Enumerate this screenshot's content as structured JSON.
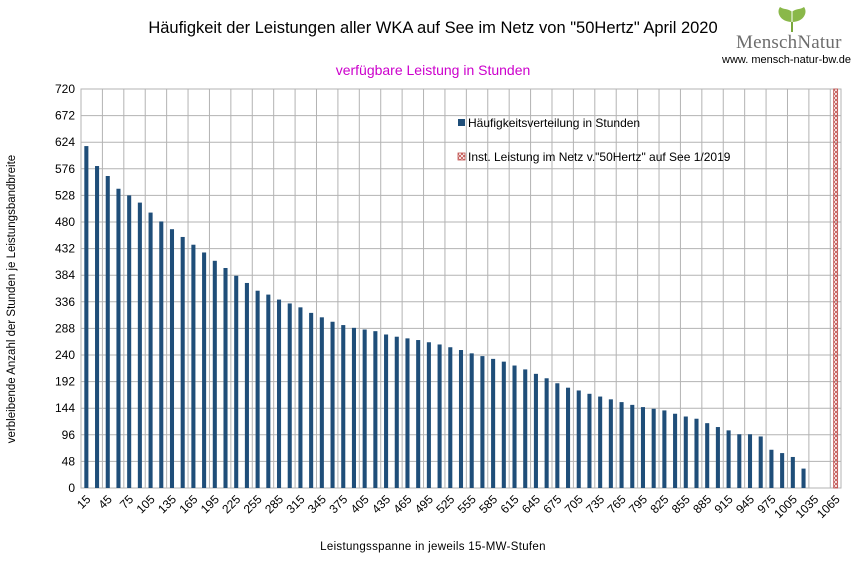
{
  "header": {
    "title": "Häufigkeit der Leistungen aller WKA auf See im Netz von \"50Hertz\" April 2020",
    "subtitle": "verfügbare Leistung in Stunden"
  },
  "logo": {
    "text": "MenschNatur",
    "url": "www. mensch-natur-bw.de",
    "icon": "ginkgo-leaf-icon"
  },
  "colors": {
    "bars": "#1f4e79",
    "subtitle": "#cc00cc",
    "inst_line": "#c0504d",
    "grid": "#b3b3b3"
  },
  "chart_data": {
    "type": "bar",
    "title": "Häufigkeit der Leistungen aller WKA auf See im Netz von \"50Hertz\" April 2020",
    "subtitle": "verfügbare Leistung in Stunden",
    "xlabel": "Leistungsspanne in jeweils 15-MW-Stufen",
    "ylabel": "verbleibende Anzahl der Stunden je Leistungsbandbreite",
    "ylim": [
      0,
      720
    ],
    "yticks": [
      0,
      48,
      96,
      144,
      192,
      240,
      288,
      336,
      384,
      432,
      480,
      528,
      576,
      624,
      672,
      720
    ],
    "x": [
      15,
      30,
      45,
      60,
      75,
      90,
      105,
      120,
      135,
      150,
      165,
      180,
      195,
      210,
      225,
      240,
      255,
      270,
      285,
      300,
      315,
      330,
      345,
      360,
      375,
      390,
      405,
      420,
      435,
      450,
      465,
      480,
      495,
      510,
      525,
      540,
      555,
      570,
      585,
      600,
      615,
      630,
      645,
      660,
      675,
      690,
      705,
      720,
      735,
      750,
      765,
      780,
      795,
      810,
      825,
      840,
      855,
      870,
      885,
      900,
      915,
      930,
      945,
      960,
      975,
      990,
      1005,
      1020,
      1035,
      1050,
      1065
    ],
    "xtick_labels": [
      "15",
      "45",
      "75",
      "105",
      "135",
      "165",
      "195",
      "225",
      "255",
      "285",
      "315",
      "345",
      "375",
      "405",
      "435",
      "465",
      "495",
      "525",
      "555",
      "585",
      "615",
      "645",
      "675",
      "705",
      "735",
      "765",
      "795",
      "825",
      "855",
      "885",
      "915",
      "945",
      "975",
      "1005",
      "1035",
      "1065"
    ],
    "grid": true,
    "legend_position": "top-right-inside",
    "series": [
      {
        "name": "Häufigkeitsverteilung in Stunden",
        "values": [
          617,
          581,
          563,
          540,
          528,
          515,
          497,
          481,
          467,
          453,
          439,
          425,
          410,
          397,
          383,
          370,
          356,
          349,
          340,
          333,
          326,
          316,
          308,
          300,
          294,
          289,
          286,
          283,
          277,
          273,
          270,
          267,
          263,
          259,
          254,
          249,
          243,
          238,
          233,
          228,
          221,
          214,
          206,
          198,
          189,
          181,
          176,
          170,
          165,
          160,
          155,
          150,
          146,
          143,
          140,
          134,
          129,
          125,
          117,
          110,
          104,
          97,
          97,
          93,
          69,
          63,
          56,
          35,
          0,
          0,
          0
        ]
      },
      {
        "name": "Inst. Leistung im Netz v.\"50Hertz\" auf See 1/2019",
        "type": "marker-column",
        "x_value": 1065,
        "value": 720
      }
    ]
  }
}
